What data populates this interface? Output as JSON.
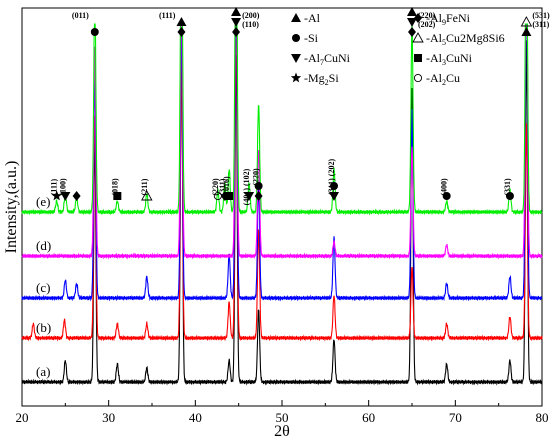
{
  "chart_data": {
    "type": "line",
    "xlabel": "2θ",
    "ylabel": "Intensity,(a.u.)",
    "xlim": [
      20,
      80
    ],
    "xticks": [
      "20",
      "30",
      "40",
      "50",
      "60",
      "70",
      "80"
    ],
    "series": [
      {
        "name": "(a)",
        "color": "#000000",
        "offset": 0,
        "peaks": [
          [
            25.0,
            6
          ],
          [
            28.4,
            68
          ],
          [
            31.0,
            5
          ],
          [
            34.4,
            4
          ],
          [
            38.4,
            95
          ],
          [
            43.9,
            6
          ],
          [
            44.7,
            92
          ],
          [
            47.3,
            20
          ],
          [
            56.0,
            12
          ],
          [
            65.0,
            82
          ],
          [
            69.0,
            5
          ],
          [
            76.3,
            6
          ],
          [
            78.2,
            95
          ]
        ]
      },
      {
        "name": "(b)",
        "color": "#ff0000",
        "offset": 1,
        "peaks": [
          [
            21.3,
            4
          ],
          [
            24.9,
            5
          ],
          [
            28.4,
            62
          ],
          [
            31.0,
            4
          ],
          [
            34.4,
            4
          ],
          [
            38.4,
            78
          ],
          [
            43.9,
            10
          ],
          [
            44.7,
            95
          ],
          [
            47.3,
            30
          ],
          [
            56.0,
            12
          ],
          [
            65.0,
            20
          ],
          [
            69.0,
            4
          ],
          [
            76.3,
            6
          ],
          [
            78.2,
            60
          ]
        ]
      },
      {
        "name": "(c)",
        "color": "#0000ff",
        "offset": 2,
        "peaks": [
          [
            25.0,
            5
          ],
          [
            26.3,
            4
          ],
          [
            28.4,
            62
          ],
          [
            34.4,
            6
          ],
          [
            38.4,
            78
          ],
          [
            43.9,
            12
          ],
          [
            44.7,
            95
          ],
          [
            47.3,
            32
          ],
          [
            56.0,
            17
          ],
          [
            65.0,
            52
          ],
          [
            69.0,
            4
          ],
          [
            76.3,
            6
          ],
          [
            78.2,
            95
          ]
        ]
      },
      {
        "name": "(d)",
        "color": "#ff00ff",
        "offset": 3,
        "peaks": [
          [
            28.4,
            58
          ],
          [
            38.4,
            78
          ],
          [
            44.7,
            95
          ],
          [
            47.3,
            30
          ],
          [
            56.0,
            4
          ],
          [
            65.0,
            30
          ],
          [
            69.0,
            3
          ],
          [
            78.2,
            95
          ]
        ]
      },
      {
        "name": "(e)",
        "color": "#00ee00",
        "offset": 4,
        "peaks": [
          [
            24.0,
            3
          ],
          [
            25.0,
            5
          ],
          [
            26.3,
            4
          ],
          [
            28.4,
            62
          ],
          [
            31.0,
            3
          ],
          [
            34.4,
            5
          ],
          [
            38.4,
            95
          ],
          [
            42.6,
            6
          ],
          [
            43.4,
            8
          ],
          [
            43.9,
            12
          ],
          [
            44.7,
            98
          ],
          [
            46.2,
            8
          ],
          [
            47.3,
            30
          ],
          [
            56.0,
            12
          ],
          [
            65.0,
            52
          ],
          [
            69.0,
            3
          ],
          [
            76.3,
            6
          ],
          [
            78.2,
            95
          ]
        ]
      }
    ],
    "peak_labels": [
      {
        "x": 24.0,
        "level": "e",
        "marks": [
          "star"
        ],
        "text": "(111)"
      },
      {
        "x": 25.0,
        "level": "e",
        "marks": [
          "tri-down"
        ],
        "text": "(100)"
      },
      {
        "x": 26.3,
        "level": "e",
        "marks": [
          "diamond"
        ],
        "text": ""
      },
      {
        "x": 28.4,
        "level": "top",
        "marks": [
          "circle"
        ],
        "text": "(011)"
      },
      {
        "x": 31.0,
        "level": "e",
        "marks": [
          "square"
        ],
        "text": "(018)"
      },
      {
        "x": 34.4,
        "level": "e",
        "marks": [
          "tri-open"
        ],
        "text": "(211)"
      },
      {
        "x": 38.4,
        "level": "top",
        "marks": [
          "diamond",
          "tri-up"
        ],
        "text": "(111)"
      },
      {
        "x": 42.6,
        "level": "e",
        "marks": [
          "circle-open"
        ],
        "text": "(220)"
      },
      {
        "x": 43.4,
        "level": "e",
        "marks": [
          "diamond"
        ],
        "text": "(311)"
      },
      {
        "x": 43.9,
        "level": "e",
        "marks": [
          "square"
        ],
        "text": "(1016)"
      },
      {
        "x": 44.7,
        "level": "top",
        "marks": [
          "diamond",
          "tri-down",
          "tri-up"
        ],
        "text": "(200) (110)"
      },
      {
        "x": 46.2,
        "level": "e",
        "marks": [
          "tri-down"
        ],
        "text": "(401) (102)"
      },
      {
        "x": 47.3,
        "level": "e",
        "marks": [
          "diamond",
          "circle"
        ],
        "text": "(220)"
      },
      {
        "x": 56.0,
        "level": "e",
        "marks": [
          "tri-down",
          "circle"
        ],
        "text": "(311) (202)"
      },
      {
        "x": 65.0,
        "level": "top",
        "marks": [
          "diamond",
          "tri-down",
          "tri-up"
        ],
        "text": "(220) (202)"
      },
      {
        "x": 69.0,
        "level": "e",
        "marks": [
          "circle"
        ],
        "text": "(400)"
      },
      {
        "x": 76.3,
        "level": "e",
        "marks": [
          "circle"
        ],
        "text": "(331)"
      },
      {
        "x": 78.2,
        "level": "top",
        "marks": [
          "tri-up",
          "tri-open"
        ],
        "text": "(531) (311)"
      }
    ],
    "legend": {
      "placement": "top-right",
      "entries": [
        {
          "mark": "tri-up",
          "text": "-Al"
        },
        {
          "mark": "diamond",
          "text": "-Al",
          "sub": "9",
          "rest": "FeNi"
        },
        {
          "mark": "circle",
          "text": "-Si"
        },
        {
          "mark": "tri-open",
          "text": "-Al",
          "sub": "5",
          "rest": "Cu2Mg8Si6"
        },
        {
          "mark": "tri-down",
          "text": "-Al",
          "sub": "7",
          "rest": "CuNi"
        },
        {
          "mark": "square",
          "text": "-Al",
          "sub": "3",
          "rest": "CuNi"
        },
        {
          "mark": "star",
          "text": "-Mg",
          "sub": "2",
          "rest": "Si"
        },
        {
          "mark": "circle-open",
          "text": "-Al",
          "sub": "2",
          "rest": "Cu"
        }
      ]
    },
    "legend_text": [
      "-Al",
      "-Al9FeNi",
      "-Si",
      "-Al5Cu2Mg8Si6",
      "-Al7CuNi",
      "-Al3CuNi",
      "-Mg2Si",
      "-Al2Cu"
    ]
  }
}
